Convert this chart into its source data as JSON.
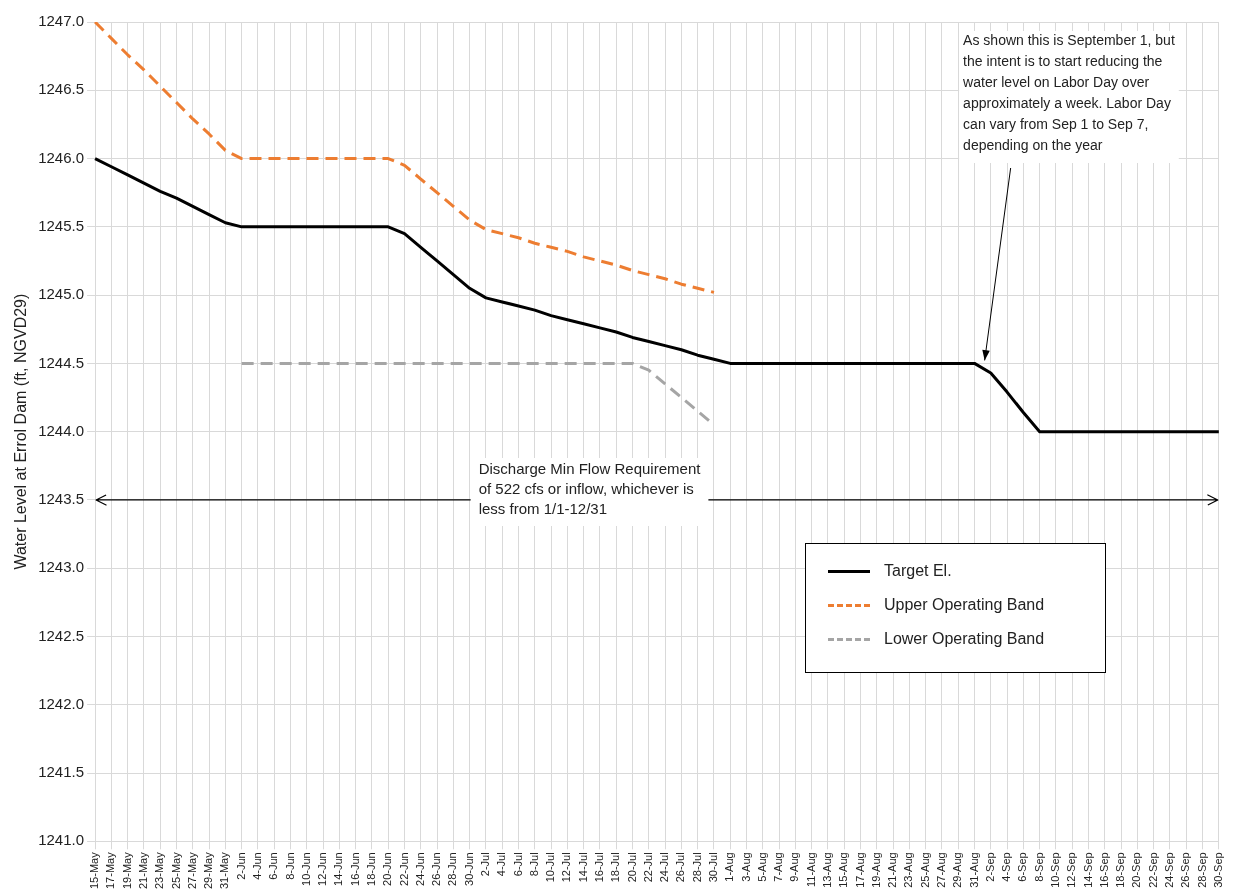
{
  "chart_data": {
    "type": "line",
    "ylabel": "Water Level at Errol Dam (ft, NGVD29)",
    "categories": [
      "15-May",
      "17-May",
      "19-May",
      "21-May",
      "23-May",
      "25-May",
      "27-May",
      "29-May",
      "31-May",
      "2-Jun",
      "4-Jun",
      "6-Jun",
      "8-Jun",
      "10-Jun",
      "12-Jun",
      "14-Jun",
      "16-Jun",
      "18-Jun",
      "20-Jun",
      "22-Jun",
      "24-Jun",
      "26-Jun",
      "28-Jun",
      "30-Jun",
      "2-Jul",
      "4-Jul",
      "6-Jul",
      "8-Jul",
      "10-Jul",
      "12-Jul",
      "14-Jul",
      "16-Jul",
      "18-Jul",
      "20-Jul",
      "22-Jul",
      "24-Jul",
      "26-Jul",
      "28-Jul",
      "30-Jul",
      "1-Aug",
      "3-Aug",
      "5-Aug",
      "7-Aug",
      "9-Aug",
      "11-Aug",
      "13-Aug",
      "15-Aug",
      "17-Aug",
      "19-Aug",
      "21-Aug",
      "23-Aug",
      "25-Aug",
      "27-Aug",
      "29-Aug",
      "31-Aug",
      "2-Sep",
      "4-Sep",
      "6-Sep",
      "8-Sep",
      "10-Sep",
      "12-Sep",
      "14-Sep",
      "16-Sep",
      "18-Sep",
      "20-Sep",
      "22-Sep",
      "24-Sep",
      "26-Sep",
      "28-Sep",
      "30-Sep"
    ],
    "series": [
      {
        "name": "Target El.",
        "color": "#000000",
        "line_style": "solid",
        "values": [
          1246.0,
          1245.94,
          1245.88,
          1245.82,
          1245.76,
          1245.71,
          1245.65,
          1245.59,
          1245.53,
          1245.5,
          1245.5,
          1245.5,
          1245.5,
          1245.5,
          1245.5,
          1245.5,
          1245.5,
          1245.5,
          1245.5,
          1245.45,
          1245.35,
          1245.25,
          1245.15,
          1245.05,
          1244.98,
          1244.95,
          1244.92,
          1244.89,
          1244.85,
          1244.82,
          1244.79,
          1244.76,
          1244.73,
          1244.69,
          1244.66,
          1244.63,
          1244.6,
          1244.56,
          1244.53,
          1244.5,
          1244.5,
          1244.5,
          1244.5,
          1244.5,
          1244.5,
          1244.5,
          1244.5,
          1244.5,
          1244.5,
          1244.5,
          1244.5,
          1244.5,
          1244.5,
          1244.5,
          1244.5,
          1244.43,
          1244.29,
          1244.14,
          1244.0,
          1244.0,
          1244.0,
          1244.0,
          1244.0,
          1244.0,
          1244.0,
          1244.0,
          1244.0,
          1244.0,
          1244.0,
          1244.0
        ]
      },
      {
        "name": "Upper Operating Band",
        "color": "#ed7d31",
        "line_style": "dashed",
        "values": [
          1247.0,
          1246.88,
          1246.76,
          1246.65,
          1246.53,
          1246.41,
          1246.29,
          1246.18,
          1246.06,
          1246.0,
          1246.0,
          1246.0,
          1246.0,
          1246.0,
          1246.0,
          1246.0,
          1246.0,
          1246.0,
          1246.0,
          1245.95,
          1245.85,
          1245.75,
          1245.65,
          1245.55,
          1245.48,
          1245.45,
          1245.42,
          1245.38,
          1245.35,
          1245.32,
          1245.28,
          1245.25,
          1245.22,
          1245.18,
          1245.15,
          1245.12,
          1245.08,
          1245.05,
          1245.02,
          null,
          null,
          null,
          null,
          null,
          null,
          null,
          null,
          null,
          null,
          null,
          null,
          null,
          null,
          null,
          null,
          null,
          null,
          null,
          null,
          null,
          null,
          null,
          null,
          null,
          null,
          null,
          null,
          null,
          null,
          null
        ]
      },
      {
        "name": "Lower Operating Band",
        "color": "#a5a5a5",
        "line_style": "dashed",
        "values": [
          null,
          null,
          null,
          null,
          null,
          null,
          null,
          null,
          null,
          1244.5,
          1244.5,
          1244.5,
          1244.5,
          1244.5,
          1244.5,
          1244.5,
          1244.5,
          1244.5,
          1244.5,
          1244.5,
          1244.5,
          1244.5,
          1244.5,
          1244.5,
          1244.5,
          1244.5,
          1244.5,
          1244.5,
          1244.5,
          1244.5,
          1244.5,
          1244.5,
          1244.5,
          1244.5,
          1244.45,
          1244.35,
          1244.25,
          1244.15,
          1244.05,
          null,
          null,
          null,
          null,
          null,
          null,
          null,
          null,
          null,
          null,
          null,
          null,
          null,
          null,
          null,
          null,
          null,
          null,
          null,
          null,
          null,
          null,
          null,
          null,
          null,
          null,
          null,
          null,
          null,
          null,
          null
        ]
      }
    ],
    "ylim": [
      1241.0,
      1247.0
    ],
    "yticks": [
      {
        "value": 1241.0,
        "label": "1241.0"
      },
      {
        "value": 1241.5,
        "label": "1241.5"
      },
      {
        "value": 1242.0,
        "label": "1242.0"
      },
      {
        "value": 1242.5,
        "label": "1242.5"
      },
      {
        "value": 1243.0,
        "label": "1243.0"
      },
      {
        "value": 1243.5,
        "label": "1243.5"
      },
      {
        "value": 1244.0,
        "label": "1244.0"
      },
      {
        "value": 1244.5,
        "label": "1244.5"
      },
      {
        "value": 1245.0,
        "label": "1245.0"
      },
      {
        "value": 1245.5,
        "label": "1245.5"
      },
      {
        "value": 1246.0,
        "label": "1246.0"
      },
      {
        "value": 1246.5,
        "label": "1246.5"
      },
      {
        "value": 1247.0,
        "label": "1247.0"
      }
    ],
    "ref_lines": [
      {
        "axis": "y",
        "value": 1243.5,
        "label": "Discharge Min Flow Requirement of 522 cfs or inflow, whichever is less from 1/1-12/31",
        "color": "#000000"
      }
    ],
    "annotations": [
      "As shown this is September 1, but the intent is to start reducing the water level on Labor Day over approximately a week. Labor Day can vary from Sep 1 to Sep 7, depending on the year"
    ],
    "grid": true,
    "legend": "bottom right",
    "marker": "none"
  }
}
